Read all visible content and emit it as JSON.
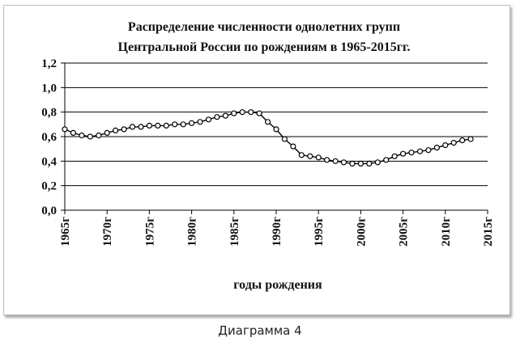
{
  "caption": "Диаграмма 4",
  "chart_data": {
    "type": "line",
    "title_lines": [
      "Распределение численности однолетних групп",
      "Центральной России по рождениям в 1965-2015гг."
    ],
    "xlabel": "годы рождения",
    "ylabel": "",
    "ylim": [
      0,
      1.2
    ],
    "yticks": [
      "0,0",
      "0,2",
      "0,4",
      "0,6",
      "0,8",
      "1,0",
      "1,2"
    ],
    "xlim": [
      1965,
      2015
    ],
    "xticks": [
      "1965г",
      "1970г",
      "1975г",
      "1980г",
      "1985г",
      "1990г",
      "1995г",
      "2000г",
      "2005г",
      "2010г",
      "2015г"
    ],
    "grid": true,
    "legend": "none",
    "marker": "open-circle",
    "series_color": "#000000",
    "x": [
      1965,
      1966,
      1967,
      1968,
      1969,
      1970,
      1971,
      1972,
      1973,
      1974,
      1975,
      1976,
      1977,
      1978,
      1979,
      1980,
      1981,
      1982,
      1983,
      1984,
      1985,
      1986,
      1987,
      1988,
      1989,
      1990,
      1991,
      1992,
      1993,
      1994,
      1995,
      1996,
      1997,
      1998,
      1999,
      2000,
      2001,
      2002,
      2003,
      2004,
      2005,
      2006,
      2007,
      2008,
      2009,
      2010,
      2011,
      2012,
      2013
    ],
    "values": [
      0.66,
      0.63,
      0.61,
      0.6,
      0.61,
      0.63,
      0.65,
      0.66,
      0.68,
      0.68,
      0.69,
      0.69,
      0.69,
      0.7,
      0.7,
      0.71,
      0.72,
      0.74,
      0.76,
      0.77,
      0.79,
      0.8,
      0.8,
      0.79,
      0.72,
      0.66,
      0.58,
      0.52,
      0.45,
      0.44,
      0.43,
      0.41,
      0.4,
      0.39,
      0.38,
      0.38,
      0.38,
      0.39,
      0.41,
      0.44,
      0.46,
      0.47,
      0.48,
      0.49,
      0.51,
      0.53,
      0.55,
      0.57,
      0.58
    ]
  }
}
